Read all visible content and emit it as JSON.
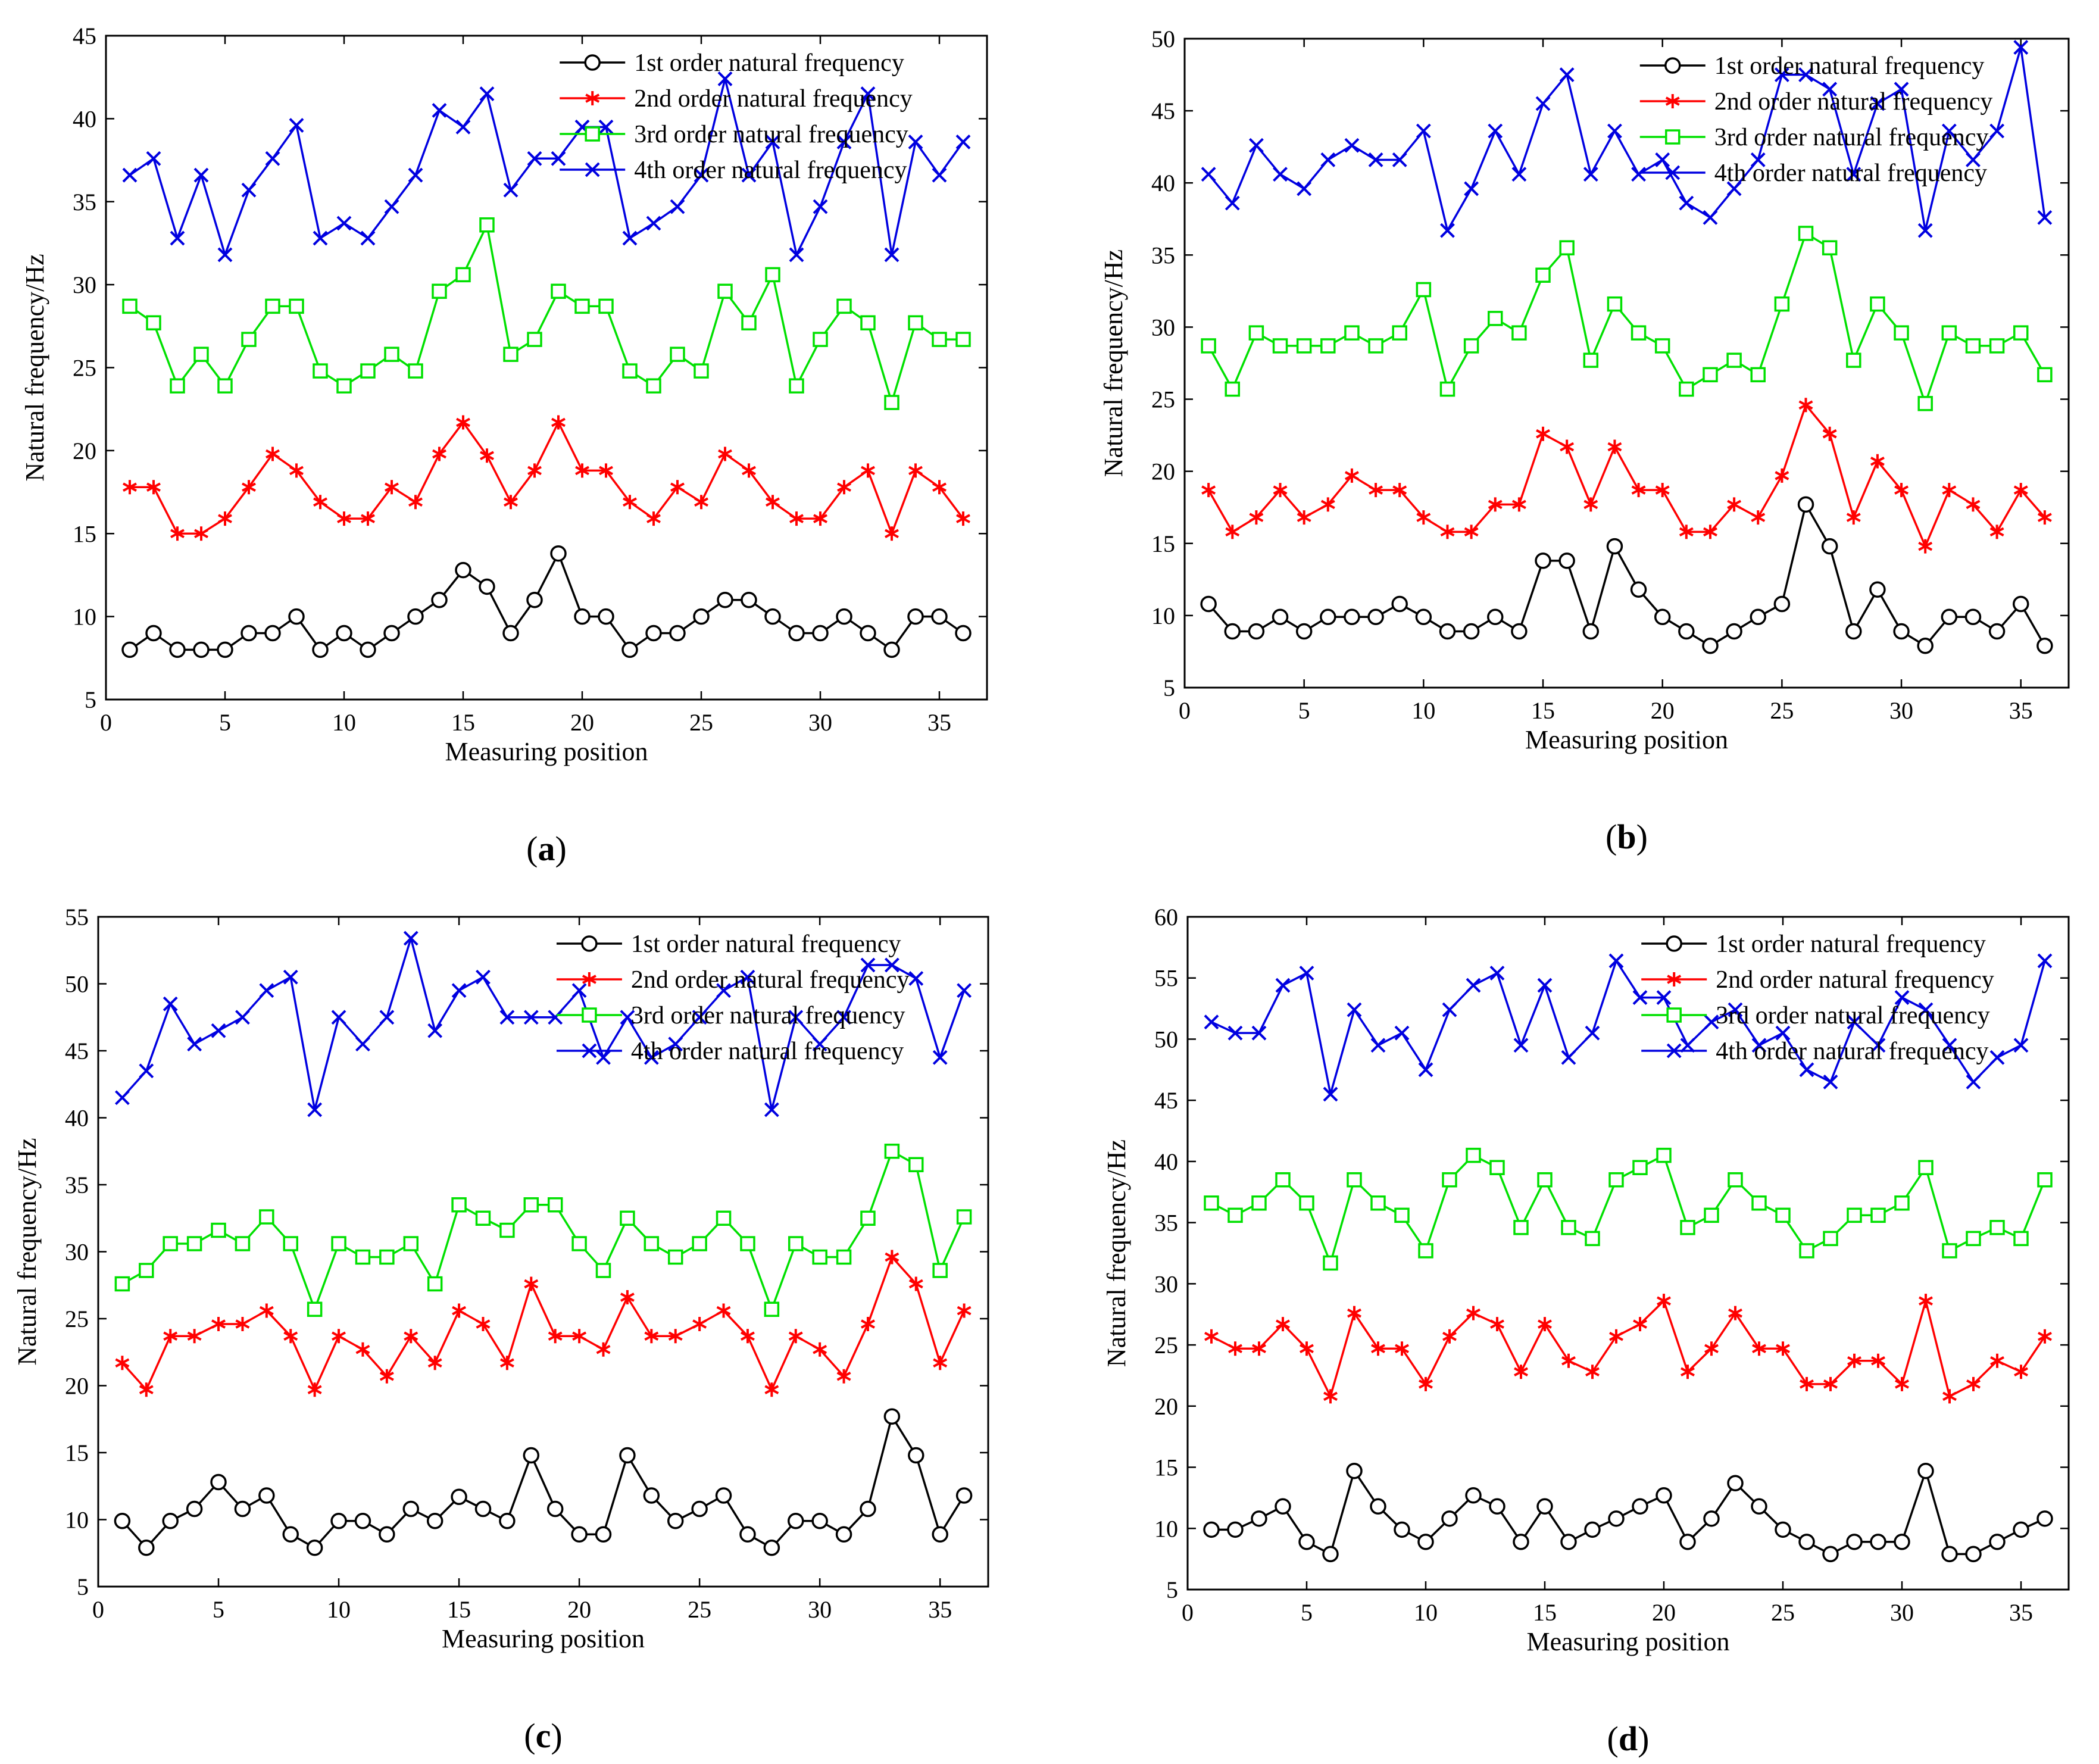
{
  "figure": {
    "series_names": [
      "1st order natural frequency",
      "2nd order natural frequency",
      "3rd order natural frequency",
      "4th order natural frequency"
    ],
    "series_colors": [
      "#000000",
      "#ff0000",
      "#00e000",
      "#0000e0"
    ],
    "series_markers": [
      "circle",
      "asterisk",
      "square",
      "x"
    ]
  },
  "chart_data": [
    {
      "panel": "a",
      "type": "line",
      "caption_open": "(",
      "caption_letter": "a",
      "caption_close": ")",
      "xlabel": "Measuring  position",
      "ylabel": "Natural frequency/Hz",
      "xlim": [
        0,
        37
      ],
      "ylim": [
        5,
        45
      ],
      "xticks": [
        0,
        5,
        10,
        15,
        20,
        25,
        30,
        35
      ],
      "yticks": [
        5,
        10,
        15,
        20,
        25,
        30,
        35,
        40,
        45
      ],
      "legend": "top-right",
      "x": [
        1,
        2,
        3,
        4,
        5,
        6,
        7,
        8,
        9,
        10,
        11,
        12,
        13,
        14,
        15,
        16,
        17,
        18,
        19,
        20,
        21,
        22,
        23,
        24,
        25,
        26,
        27,
        28,
        29,
        30,
        31,
        32,
        33,
        34,
        35,
        36
      ],
      "series": [
        {
          "name": "1st order natural frequency",
          "values": [
            8,
            9,
            8,
            8,
            8,
            9,
            9,
            10,
            8,
            9,
            8,
            9,
            10,
            11,
            12.8,
            11.8,
            9,
            11,
            13.8,
            10,
            10,
            8,
            9,
            9,
            10,
            11,
            11,
            10,
            9,
            9,
            10,
            9,
            8,
            10,
            10,
            9
          ]
        },
        {
          "name": "2nd order natural frequency",
          "values": [
            17.8,
            17.8,
            15,
            15,
            15.9,
            17.8,
            19.8,
            18.8,
            16.9,
            15.9,
            15.9,
            17.8,
            16.9,
            19.8,
            21.7,
            19.7,
            16.9,
            18.8,
            21.7,
            18.8,
            18.8,
            16.9,
            15.9,
            17.8,
            16.9,
            19.8,
            18.8,
            16.9,
            15.9,
            15.9,
            17.8,
            18.8,
            15,
            18.8,
            17.8,
            15.9
          ]
        },
        {
          "name": "3rd order natural frequency",
          "values": [
            28.7,
            27.7,
            23.9,
            25.8,
            23.9,
            26.7,
            28.7,
            28.7,
            24.8,
            23.9,
            24.8,
            25.8,
            24.8,
            29.6,
            30.6,
            33.6,
            25.8,
            26.7,
            29.6,
            28.7,
            28.7,
            24.8,
            23.9,
            25.8,
            24.8,
            29.6,
            27.7,
            30.6,
            23.9,
            26.7,
            28.7,
            27.7,
            22.9,
            27.7,
            26.7,
            26.7
          ]
        },
        {
          "name": "4th order natural frequency",
          "values": [
            36.6,
            37.6,
            32.8,
            36.6,
            31.8,
            35.7,
            37.6,
            39.6,
            32.8,
            33.7,
            32.8,
            34.7,
            36.6,
            40.5,
            39.5,
            41.5,
            35.7,
            37.6,
            37.6,
            39.5,
            39.5,
            32.8,
            33.7,
            34.7,
            36.6,
            42.4,
            36.6,
            38.6,
            31.8,
            34.7,
            38.6,
            41.5,
            31.8,
            38.6,
            36.6,
            38.6
          ]
        }
      ]
    },
    {
      "panel": "b",
      "type": "line",
      "caption_open": "(",
      "caption_letter": "b",
      "caption_close": ")",
      "xlabel": "Measuring  position",
      "ylabel": "Natural frequency/Hz",
      "xlim": [
        0,
        37
      ],
      "ylim": [
        5,
        50
      ],
      "xticks": [
        0,
        5,
        10,
        15,
        20,
        25,
        30,
        35
      ],
      "yticks": [
        5,
        10,
        15,
        20,
        25,
        30,
        35,
        40,
        45,
        50
      ],
      "legend": "top-right",
      "x": [
        1,
        2,
        3,
        4,
        5,
        6,
        7,
        8,
        9,
        10,
        11,
        12,
        13,
        14,
        15,
        16,
        17,
        18,
        19,
        20,
        21,
        22,
        23,
        24,
        25,
        26,
        27,
        28,
        29,
        30,
        31,
        32,
        33,
        34,
        35,
        36
      ],
      "series": [
        {
          "name": "1st order natural frequency",
          "values": [
            10.8,
            8.9,
            8.9,
            9.9,
            8.9,
            9.9,
            9.9,
            9.9,
            10.8,
            9.9,
            8.9,
            8.9,
            9.9,
            8.9,
            13.8,
            13.8,
            8.9,
            14.8,
            11.8,
            9.9,
            8.9,
            7.9,
            8.9,
            9.9,
            10.8,
            17.7,
            14.8,
            8.9,
            11.8,
            8.9,
            7.9,
            9.9,
            9.9,
            8.9,
            10.8,
            7.9
          ]
        },
        {
          "name": "2nd order natural frequency",
          "values": [
            18.7,
            15.8,
            16.8,
            18.7,
            16.8,
            17.7,
            19.7,
            18.7,
            18.7,
            16.8,
            15.8,
            15.8,
            17.7,
            17.7,
            22.6,
            21.7,
            17.7,
            21.7,
            18.7,
            18.7,
            15.8,
            15.8,
            17.7,
            16.8,
            19.7,
            24.6,
            22.6,
            16.8,
            20.7,
            18.7,
            14.8,
            18.7,
            17.7,
            15.8,
            18.7,
            16.8
          ]
        },
        {
          "name": "3rd order natural frequency",
          "values": [
            28.7,
            25.7,
            29.6,
            28.7,
            28.7,
            28.7,
            29.6,
            28.7,
            29.6,
            32.6,
            25.7,
            28.7,
            30.6,
            29.6,
            33.6,
            35.5,
            27.7,
            31.6,
            29.6,
            28.7,
            25.7,
            26.7,
            27.7,
            26.7,
            31.6,
            36.5,
            35.5,
            27.7,
            31.6,
            29.6,
            24.7,
            29.6,
            28.7,
            28.7,
            29.6,
            26.7
          ]
        },
        {
          "name": "4th order natural frequency",
          "values": [
            40.6,
            38.6,
            42.6,
            40.6,
            39.6,
            41.6,
            42.6,
            41.6,
            41.6,
            43.6,
            36.7,
            39.6,
            43.6,
            40.6,
            45.5,
            47.5,
            40.6,
            43.6,
            40.6,
            41.6,
            38.6,
            37.6,
            39.6,
            41.6,
            47.5,
            47.5,
            46.5,
            40.6,
            45.5,
            46.5,
            36.7,
            43.6,
            41.6,
            43.6,
            49.4,
            37.6
          ]
        }
      ]
    },
    {
      "panel": "c",
      "type": "line",
      "caption_open": "(",
      "caption_letter": "c",
      "caption_close": ")",
      "xlabel": "Measuring  position",
      "ylabel": "Natural frequency/Hz",
      "xlim": [
        0,
        37
      ],
      "ylim": [
        5,
        55
      ],
      "xticks": [
        0,
        5,
        10,
        15,
        20,
        25,
        30,
        35
      ],
      "yticks": [
        5,
        10,
        15,
        20,
        25,
        30,
        35,
        40,
        45,
        50,
        55
      ],
      "legend": "top-right",
      "x": [
        1,
        2,
        3,
        4,
        5,
        6,
        7,
        8,
        9,
        10,
        11,
        12,
        13,
        14,
        15,
        16,
        17,
        18,
        19,
        20,
        21,
        22,
        23,
        24,
        25,
        26,
        27,
        28,
        29,
        30,
        31,
        32,
        33,
        34,
        35,
        36
      ],
      "series": [
        {
          "name": "1st order natural frequency",
          "values": [
            9.9,
            7.9,
            9.9,
            10.8,
            12.8,
            10.8,
            11.8,
            8.9,
            7.9,
            9.9,
            9.9,
            8.9,
            10.8,
            9.9,
            11.7,
            10.8,
            9.9,
            14.8,
            10.8,
            8.9,
            8.9,
            14.8,
            11.8,
            9.9,
            10.8,
            11.8,
            8.9,
            7.9,
            9.9,
            9.9,
            8.9,
            10.8,
            17.7,
            14.8,
            8.9,
            11.8
          ]
        },
        {
          "name": "2nd order natural frequency",
          "values": [
            21.7,
            19.7,
            23.7,
            23.7,
            24.6,
            24.6,
            25.6,
            23.7,
            19.7,
            23.7,
            22.7,
            20.7,
            23.7,
            21.7,
            25.6,
            24.6,
            21.7,
            27.6,
            23.7,
            23.7,
            22.7,
            26.6,
            23.7,
            23.7,
            24.6,
            25.6,
            23.7,
            19.7,
            23.7,
            22.7,
            20.7,
            24.6,
            29.6,
            27.6,
            21.7,
            25.6
          ]
        },
        {
          "name": "3rd order natural frequency",
          "values": [
            27.6,
            28.6,
            30.6,
            30.6,
            31.6,
            30.6,
            32.6,
            30.6,
            25.7,
            30.6,
            29.6,
            29.6,
            30.6,
            27.6,
            33.5,
            32.5,
            31.6,
            33.5,
            33.5,
            30.6,
            28.6,
            32.5,
            30.6,
            29.6,
            30.6,
            32.5,
            30.6,
            25.7,
            30.6,
            29.6,
            29.6,
            32.5,
            37.5,
            36.5,
            28.6,
            32.6
          ]
        },
        {
          "name": "4th order natural frequency",
          "values": [
            41.5,
            43.5,
            48.5,
            45.5,
            46.5,
            47.5,
            49.5,
            50.5,
            40.6,
            47.5,
            45.5,
            47.5,
            53.4,
            46.5,
            49.5,
            50.5,
            47.5,
            47.5,
            47.5,
            49.5,
            44.5,
            47.5,
            44.5,
            45.5,
            47.5,
            49.5,
            50.5,
            40.6,
            47.5,
            45.5,
            47.5,
            51.4,
            51.4,
            50.4,
            44.5,
            49.5
          ]
        }
      ]
    },
    {
      "panel": "d",
      "type": "line",
      "caption_open": "(",
      "caption_letter": "d",
      "caption_close": ")",
      "xlabel": "Measuring  position",
      "ylabel": "Natural frequency/Hz",
      "xlim": [
        0,
        37
      ],
      "ylim": [
        5,
        60
      ],
      "xticks": [
        0,
        5,
        10,
        15,
        20,
        25,
        30,
        35
      ],
      "yticks": [
        5,
        10,
        15,
        20,
        25,
        30,
        35,
        40,
        45,
        50,
        55,
        60
      ],
      "legend": "top-right",
      "x": [
        1,
        2,
        3,
        4,
        5,
        6,
        7,
        8,
        9,
        10,
        11,
        12,
        13,
        14,
        15,
        16,
        17,
        18,
        19,
        20,
        21,
        22,
        23,
        24,
        25,
        26,
        27,
        28,
        29,
        30,
        31,
        32,
        33,
        34,
        35,
        36
      ],
      "series": [
        {
          "name": "1st order natural frequency",
          "values": [
            9.9,
            9.9,
            10.8,
            11.8,
            8.9,
            7.9,
            14.7,
            11.8,
            9.9,
            8.9,
            10.8,
            12.7,
            11.8,
            8.9,
            11.8,
            8.9,
            9.9,
            10.8,
            11.8,
            12.7,
            8.9,
            10.8,
            13.7,
            11.8,
            9.9,
            8.9,
            7.9,
            8.9,
            8.9,
            8.9,
            14.7,
            7.9,
            7.9,
            8.9,
            9.9,
            10.8
          ]
        },
        {
          "name": "2nd order natural frequency",
          "values": [
            25.7,
            24.7,
            24.7,
            26.7,
            24.7,
            20.8,
            27.6,
            24.7,
            24.7,
            21.8,
            25.7,
            27.6,
            26.7,
            22.8,
            26.7,
            23.7,
            22.8,
            25.7,
            26.7,
            28.6,
            22.8,
            24.7,
            27.6,
            24.7,
            24.7,
            21.8,
            21.8,
            23.7,
            23.7,
            21.8,
            28.6,
            20.8,
            21.8,
            23.7,
            22.8,
            25.7
          ]
        },
        {
          "name": "3rd order natural frequency",
          "values": [
            36.6,
            35.6,
            36.6,
            38.5,
            36.6,
            31.7,
            38.5,
            36.6,
            35.6,
            32.7,
            38.5,
            40.5,
            39.5,
            34.6,
            38.5,
            34.6,
            33.7,
            38.5,
            39.5,
            40.5,
            34.6,
            35.6,
            38.5,
            36.6,
            35.6,
            32.7,
            33.7,
            35.6,
            35.6,
            36.6,
            39.5,
            32.7,
            33.7,
            34.6,
            33.7,
            38.5
          ]
        },
        {
          "name": "4th order natural frequency",
          "values": [
            51.4,
            50.5,
            50.5,
            54.4,
            55.4,
            45.5,
            52.4,
            49.5,
            50.5,
            47.5,
            52.4,
            54.4,
            55.4,
            49.5,
            54.4,
            48.5,
            50.5,
            56.4,
            53.4,
            53.4,
            49.5,
            51.4,
            52.4,
            49.5,
            50.5,
            47.5,
            46.5,
            51.4,
            49.5,
            53.4,
            52.4,
            49.5,
            46.5,
            48.5,
            49.5,
            56.4
          ]
        }
      ]
    }
  ]
}
